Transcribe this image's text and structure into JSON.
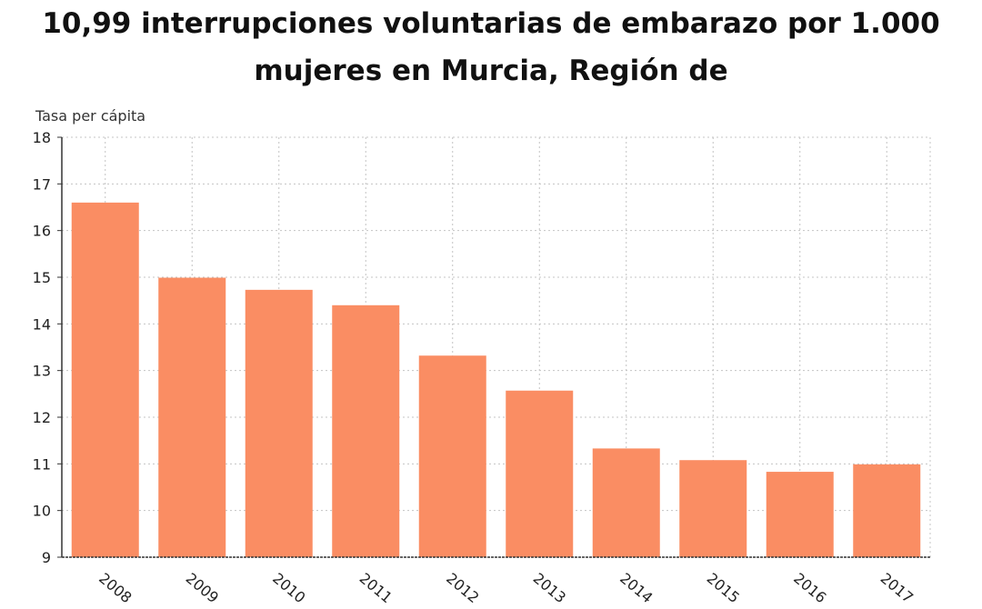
{
  "chart_data": {
    "type": "bar",
    "title": "10,99 interrupciones voluntarias de embarazo por 1.000 mujeres en Murcia, Región de",
    "ylabel": "Tasa per cápita",
    "xlabel": "",
    "categories": [
      "2008",
      "2009",
      "2010",
      "2011",
      "2012",
      "2013",
      "2014",
      "2015",
      "2016",
      "2017"
    ],
    "values": [
      16.6,
      14.99,
      14.73,
      14.4,
      13.32,
      12.57,
      11.33,
      11.08,
      10.83,
      10.99
    ],
    "ylim": [
      9,
      18
    ],
    "yticks": [
      "9",
      "10",
      "11",
      "12",
      "13",
      "14",
      "15",
      "16",
      "17",
      "18"
    ],
    "grid": true,
    "bar_color": "#fa8d63"
  }
}
